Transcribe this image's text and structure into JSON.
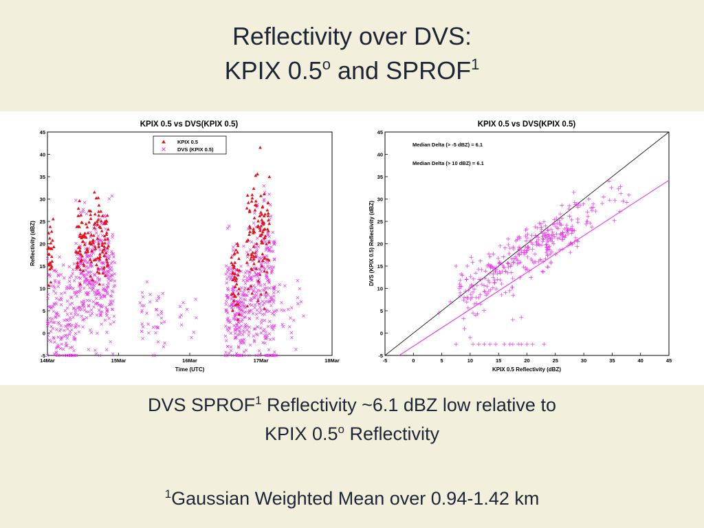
{
  "slide": {
    "title_line1": "Reflectivity over DVS:",
    "title_line2_a": "KPIX 0.5",
    "title_line2_sup": "o",
    "title_line2_b": " and SPROF",
    "title_line2_sup2": "1",
    "caption_line1_a": "DVS SPROF",
    "caption_line1_sup": "1",
    "caption_line1_b": " Reflectivity ~6.1 dBZ low relative to",
    "caption_line2_a": "KPIX 0.5",
    "caption_line2_sup": "o",
    "caption_line2_b": " Reflectivity",
    "footnote_sup": "1",
    "footnote_text": "Gaussian Weighted Mean over 0.94-1.42 km"
  },
  "chart_data": [
    {
      "type": "scatter",
      "title": "KPIX 0.5 vs DVS(KPIX 0.5)",
      "xlabel": "Time (UTC)",
      "ylabel": "Reflectivity (dBZ)",
      "xlim": [
        "14Mar",
        "18Mar"
      ],
      "ylim": [
        -5,
        45
      ],
      "xticks": [
        "14Mar",
        "15Mar",
        "16Mar",
        "17Mar",
        "18Mar"
      ],
      "yticks": [
        -5,
        0,
        5,
        10,
        15,
        20,
        25,
        30,
        35,
        40,
        45
      ],
      "grid": false,
      "legend_position": "top-center",
      "colors": {
        "kpix": "#e8101a",
        "dvs": "#ee30ee"
      },
      "series": [
        {
          "name": "KPIX 0.5",
          "marker": "triangle",
          "clusters": [
            {
              "x_start_days": 0.0,
              "x_end_days": 0.1,
              "y_mean": 16,
              "y_sd": 3.5,
              "count": 28,
              "y_peak": 25.5
            },
            {
              "x_start_days": 0.4,
              "x_end_days": 0.86,
              "y_mean": 20,
              "y_sd": 4.5,
              "count": 140,
              "y_peak": 31.5
            },
            {
              "x_start_days": 2.58,
              "x_end_days": 2.7,
              "y_mean": 12,
              "y_sd": 3.5,
              "count": 40,
              "y_peak": 20
            },
            {
              "x_start_days": 2.8,
              "x_end_days": 3.12,
              "y_mean": 21,
              "y_sd": 6.5,
              "count": 110,
              "y_peak": 41.5
            }
          ]
        },
        {
          "name": "DVS (KPIX 0.5)",
          "marker": "x",
          "clusters": [
            {
              "x_start_days": 0.0,
              "x_end_days": 0.4,
              "y_mean": 4,
              "y_sd": 6,
              "count": 170
            },
            {
              "x_start_days": 0.4,
              "x_end_days": 0.95,
              "y_mean": 12,
              "y_sd": 6.5,
              "count": 330
            },
            {
              "x_start_days": 1.28,
              "x_end_days": 1.65,
              "y_mean": 2,
              "y_sd": 4.5,
              "count": 40
            },
            {
              "x_start_days": 1.85,
              "x_end_days": 2.1,
              "y_mean": 5,
              "y_sd": 4,
              "count": 10
            },
            {
              "x_start_days": 2.5,
              "x_end_days": 2.8,
              "y_mean": 5,
              "y_sd": 6,
              "count": 200
            },
            {
              "x_start_days": 2.8,
              "x_end_days": 3.2,
              "y_mean": 10,
              "y_sd": 9,
              "count": 270
            },
            {
              "x_start_days": 3.2,
              "x_end_days": 3.6,
              "y_mean": 3,
              "y_sd": 5,
              "count": 25
            }
          ]
        }
      ]
    },
    {
      "type": "scatter",
      "title": "KPIX 0.5 vs DVS(KPIX 0.5)",
      "xlabel": "KPIX 0.5 Reflectivity (dBZ)",
      "ylabel": "DVS (KPIX 0.5) Reflectivity (dBZ)",
      "xlim": [
        -5,
        45
      ],
      "ylim": [
        -5,
        45
      ],
      "xticks": [
        -5,
        0,
        5,
        10,
        15,
        20,
        25,
        30,
        35,
        40,
        45
      ],
      "yticks": [
        -5,
        0,
        5,
        10,
        15,
        20,
        25,
        30,
        35,
        40,
        45
      ],
      "grid": false,
      "colors": {
        "points": "#ee30ee",
        "one_to_one": "#111111",
        "fit": "#ee30ee"
      },
      "annotations": [
        "Median Delta (> -5 dBZ) = 6.1",
        "Median Delta (> 10 dBZ) = 6.1"
      ],
      "one_to_one_line": [
        [
          -5,
          -5
        ],
        [
          45,
          45
        ]
      ],
      "fit_line": [
        [
          -2.5,
          -5
        ],
        [
          45,
          34.2
        ]
      ],
      "main_cloud": {
        "x_min": 8,
        "x_max": 38,
        "slope": 0.8,
        "intercept": -4.1,
        "y_sd": 2.8,
        "count": 360
      },
      "floor_points": {
        "x": [
          7.5,
          10.5,
          11.5,
          12.5,
          13.5,
          14.5,
          16,
          17,
          17.5,
          18.5,
          19,
          20,
          21,
          23
        ],
        "y": -2.5
      },
      "outlier_points": {
        "x": [
          4.5,
          6.5,
          7.5,
          9.5,
          10.5,
          9,
          17.5,
          19,
          10
        ],
        "y": [
          4.5,
          7,
          15,
          15,
          4.5,
          1,
          3,
          3.5,
          -1
        ]
      }
    }
  ]
}
